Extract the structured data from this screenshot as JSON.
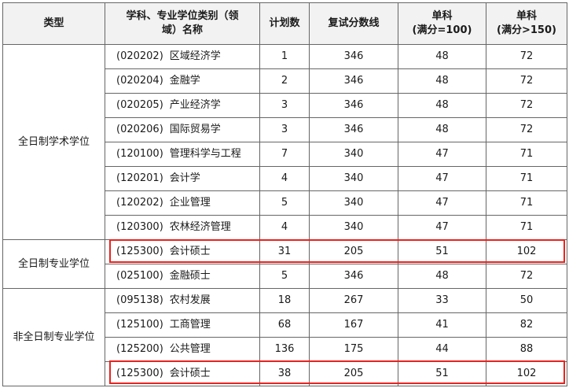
{
  "headers": {
    "type": "类型",
    "subject_l1": "学科、专业学位类别（领",
    "subject_l2": "域）名称",
    "plan": "计划数",
    "retest": "复试分数线",
    "single100_l1": "单科",
    "single100_l2": "(满分=100)",
    "single150_l1": "单科",
    "single150_l2": "(满分>150)"
  },
  "groups": [
    {
      "label": "全日制学术学位"
    },
    {
      "label": "全日制专业学位"
    },
    {
      "label": "非全日制专业学位"
    }
  ],
  "rows": [
    {
      "code": "(020202)",
      "name": "区域经济学",
      "plan": "1",
      "score": "346",
      "s100": "48",
      "s150": "72"
    },
    {
      "code": "(020204)",
      "name": "金融学",
      "plan": "2",
      "score": "346",
      "s100": "48",
      "s150": "72"
    },
    {
      "code": "(020205)",
      "name": "产业经济学",
      "plan": "3",
      "score": "346",
      "s100": "48",
      "s150": "72"
    },
    {
      "code": "(020206)",
      "name": "国际贸易学",
      "plan": "3",
      "score": "346",
      "s100": "48",
      "s150": "72"
    },
    {
      "code": "(120100)",
      "name": "管理科学与工程",
      "plan": "7",
      "score": "340",
      "s100": "47",
      "s150": "71"
    },
    {
      "code": "(120201)",
      "name": "会计学",
      "plan": "4",
      "score": "340",
      "s100": "47",
      "s150": "71"
    },
    {
      "code": "(120202)",
      "name": "企业管理",
      "plan": "5",
      "score": "340",
      "s100": "47",
      "s150": "71"
    },
    {
      "code": "(120300)",
      "name": "农林经济管理",
      "plan": "4",
      "score": "340",
      "s100": "47",
      "s150": "71"
    },
    {
      "code": "(125300)",
      "name": "会计硕士",
      "plan": "31",
      "score": "205",
      "s100": "51",
      "s150": "102"
    },
    {
      "code": "(025100)",
      "name": "金融硕士",
      "plan": "5",
      "score": "346",
      "s100": "48",
      "s150": "72"
    },
    {
      "code": "(095138)",
      "name": "农村发展",
      "plan": "18",
      "score": "267",
      "s100": "33",
      "s150": "50"
    },
    {
      "code": "(125100)",
      "name": "工商管理",
      "plan": "68",
      "score": "167",
      "s100": "41",
      "s150": "82"
    },
    {
      "code": "(125200)",
      "name": "公共管理",
      "plan": "136",
      "score": "175",
      "s100": "44",
      "s150": "88"
    },
    {
      "code": "(125300)",
      "name": "会计硕士",
      "plan": "38",
      "score": "205",
      "s100": "51",
      "s150": "102"
    }
  ],
  "colors": {
    "highlight": "#e8231f",
    "border": "#666666",
    "header_bg": "#f2f2f2"
  }
}
